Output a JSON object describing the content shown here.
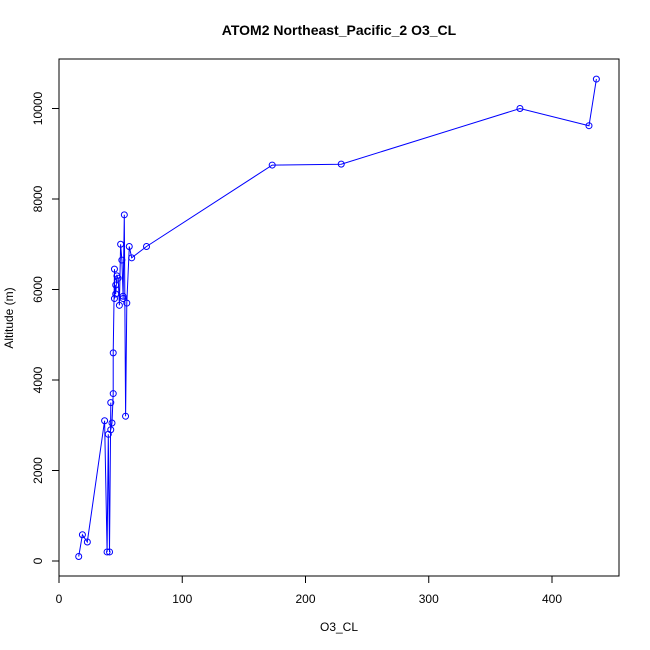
{
  "chart_data": {
    "type": "line",
    "title": "ATOM2 Northeast_Pacific_2 O3_CL",
    "xlabel": "O3_CL",
    "ylabel": "Altitude (m)",
    "xlim": [
      0,
      450
    ],
    "ylim": [
      0,
      11000
    ],
    "xticks": [
      0,
      100,
      200,
      300,
      400
    ],
    "yticks": [
      0,
      2000,
      4000,
      6000,
      8000,
      10000
    ],
    "grid": false,
    "style": {
      "color": "#0000ff",
      "marker": "open-circle",
      "line": "solid"
    },
    "series": [
      {
        "x": [
          16,
          19,
          23,
          37,
          39,
          40,
          41,
          42,
          42,
          43,
          44,
          44,
          45,
          45,
          46,
          46,
          47,
          48,
          49,
          50,
          51,
          52,
          52,
          53,
          54,
          55,
          57,
          59,
          71,
          173,
          229,
          374,
          430,
          436
        ],
        "y": [
          100,
          580,
          420,
          3100,
          200,
          2800,
          200,
          3500,
          2900,
          3050,
          3700,
          4600,
          6450,
          5800,
          6100,
          5900,
          6300,
          6250,
          5650,
          7000,
          6650,
          5850,
          5800,
          7650,
          3200,
          5700,
          6950,
          6700,
          6950,
          8750,
          8770,
          10000,
          9620,
          10650
        ]
      }
    ]
  }
}
